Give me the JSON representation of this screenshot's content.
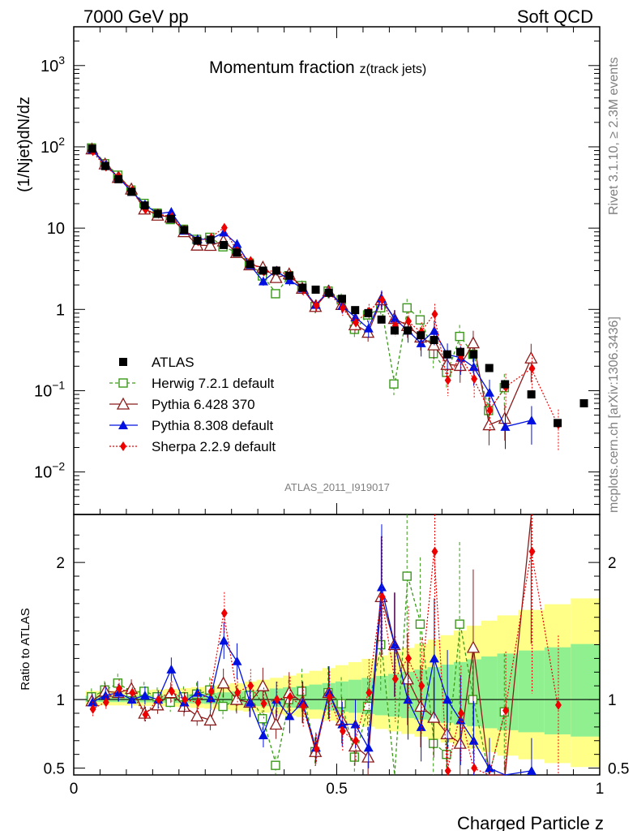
{
  "header": {
    "left": "7000 GeV pp",
    "right": "Soft QCD"
  },
  "side_text": {
    "top": "Rivet 3.1.10, ≥ 2.3M events",
    "bottom": "mcplots.cern.ch [arXiv:1306.3436]"
  },
  "title": {
    "main": "Momentum fraction ",
    "sub": "z(track jets)"
  },
  "watermark": "ATLAS_2011_I919017",
  "axes": {
    "ylabel_top": "(1/Njet)dN/dz",
    "ylabel_bottom": "Ratio to ATLAS",
    "xlabel": "Charged Particle z",
    "xticks": [
      "0",
      "0.5",
      "1"
    ],
    "yticks_top": [
      {
        "v": 1000,
        "base": "10",
        "exp": "3"
      },
      {
        "v": 100,
        "base": "10",
        "exp": "2"
      },
      {
        "v": 10,
        "base": "10",
        "exp": ""
      },
      {
        "v": 1,
        "base": "1",
        "exp": ""
      },
      {
        "v": 0.1,
        "base": "10",
        "exp": "−1"
      },
      {
        "v": 0.01,
        "base": "10",
        "exp": "−2"
      }
    ],
    "yticks_bottom": [
      "0.5",
      "1",
      "2"
    ]
  },
  "legend": [
    {
      "label": "ATLAS",
      "color": "#000000",
      "marker": "square",
      "dash": "none"
    },
    {
      "label": "Herwig 7.2.1 default",
      "color": "#3a9a1a",
      "marker": "open-square",
      "dash": "4,3"
    },
    {
      "label": "Pythia 6.428 370",
      "color": "#8b1a1a",
      "marker": "open-triangle",
      "dash": "none"
    },
    {
      "label": "Pythia 8.308 default",
      "color": "#0010e0",
      "marker": "triangle",
      "dash": "none"
    },
    {
      "label": "Sherpa 2.2.9 default",
      "color": "#ee0000",
      "marker": "diamond",
      "dash": "2,2"
    }
  ],
  "chart_data": {
    "type": "scatter",
    "title": "Momentum fraction z(track jets)",
    "xlabel": "Charged Particle z",
    "ylabel": "(1/Njet)dN/dz",
    "xlim": [
      0,
      1
    ],
    "ylim": [
      0.003,
      3000
    ],
    "yscale": "log",
    "ratio_ylim": [
      0.45,
      2.35
    ],
    "ratio_ylabel": "Ratio to ATLAS",
    "x": [
      0.035,
      0.06,
      0.085,
      0.11,
      0.135,
      0.16,
      0.185,
      0.21,
      0.235,
      0.26,
      0.285,
      0.31,
      0.335,
      0.36,
      0.385,
      0.41,
      0.435,
      0.46,
      0.485,
      0.51,
      0.535,
      0.56,
      0.585,
      0.61,
      0.635,
      0.66,
      0.685,
      0.71,
      0.735,
      0.76,
      0.79,
      0.82,
      0.87,
      0.92,
      0.97
    ],
    "series": [
      {
        "name": "ATLAS",
        "values": [
          95,
          58,
          40,
          28,
          19,
          15,
          13,
          9.5,
          7.0,
          7.2,
          6.2,
          5.0,
          3.6,
          3.0,
          3.0,
          2.6,
          1.85,
          1.75,
          1.6,
          1.35,
          0.98,
          0.9,
          0.75,
          0.55,
          0.55,
          0.48,
          0.42,
          0.28,
          0.3,
          0.28,
          0.19,
          0.12,
          0.09,
          0.04,
          0.07
        ]
      },
      {
        "name": "Herwig 7.2.1 default",
        "ratio": [
          1.02,
          1.07,
          1.12,
          1.05,
          1.06,
          1.02,
          0.98,
          1.02,
          1.04,
          1.07,
          0.95,
          1.0,
          1.03,
          0.86,
          0.52,
          1.0,
          1.06,
          0.62,
          1.05,
          0.97,
          0.58,
          0.95,
          1.4,
          0.22,
          1.9,
          1.55,
          0.68,
          0.6,
          1.55,
          1.0,
          0.3,
          0.91,
          null,
          null,
          null
        ]
      },
      {
        "name": "Pythia 6.428 370",
        "ratio": [
          0.99,
          1.06,
          1.05,
          1.08,
          0.9,
          0.96,
          1.05,
          0.95,
          0.88,
          0.85,
          1.12,
          1.0,
          0.98,
          1.1,
          0.82,
          1.05,
          0.98,
          0.62,
          1.05,
          0.85,
          0.66,
          0.58,
          1.75,
          1.4,
          1.15,
          0.95,
          0.87,
          0.75,
          0.68,
          1.38,
          0.2,
          0.38,
          2.8,
          null,
          null
        ]
      },
      {
        "name": "Pythia 8.308 default",
        "ratio": [
          0.98,
          1.03,
          1.05,
          1.0,
          1.03,
          1.0,
          1.22,
          0.98,
          1.05,
          1.01,
          1.43,
          1.28,
          0.98,
          0.74,
          1.0,
          0.88,
          0.98,
          0.65,
          1.05,
          0.82,
          0.82,
          0.65,
          1.82,
          1.4,
          1.0,
          0.8,
          1.3,
          1.0,
          0.85,
          0.7,
          0.5,
          0.3,
          0.48,
          null,
          null
        ]
      },
      {
        "name": "Sherpa 2.2.9 default",
        "ratio": [
          0.93,
          0.98,
          1.08,
          1.05,
          0.89,
          1.0,
          1.06,
          1.0,
          0.98,
          1.06,
          1.63,
          1.05,
          1.1,
          0.97,
          1.0,
          1.02,
          0.95,
          0.64,
          1.02,
          0.77,
          0.7,
          1.05,
          1.75,
          1.15,
          1.3,
          1.1,
          2.08,
          0.48,
          0.9,
          0.5,
          0.3,
          0.92,
          2.08,
          0.96,
          null
        ]
      }
    ]
  }
}
